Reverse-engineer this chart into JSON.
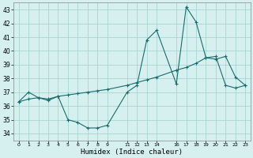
{
  "title": "",
  "xlabel": "Humidex (Indice chaleur)",
  "bg_color": "#d6f0f0",
  "grid_color": "#a8d4d4",
  "line_color": "#1a6b6b",
  "xlim": [
    -0.5,
    23.5
  ],
  "ylim": [
    33.5,
    43.5
  ],
  "yticks": [
    34,
    35,
    36,
    37,
    38,
    39,
    40,
    41,
    42,
    43
  ],
  "xtick_vals": [
    0,
    1,
    2,
    3,
    4,
    5,
    6,
    7,
    8,
    9,
    11,
    12,
    13,
    14,
    16,
    17,
    18,
    19,
    20,
    21,
    22,
    23
  ],
  "xtick_labels": [
    "0",
    "1",
    "2",
    "3",
    "4",
    "5",
    "6",
    "7",
    "8",
    "9",
    "11",
    "12",
    "13",
    "14",
    "16",
    "17",
    "18",
    "19",
    "20",
    "21",
    "22",
    "23"
  ],
  "line1_x": [
    0,
    1,
    2,
    3,
    4,
    5,
    6,
    7,
    8,
    9,
    11,
    12,
    13,
    14,
    16,
    17,
    18,
    19,
    20,
    21,
    22,
    23
  ],
  "line1_y": [
    36.3,
    37.0,
    36.6,
    36.4,
    36.7,
    35.0,
    34.8,
    34.4,
    34.4,
    34.6,
    37.0,
    37.5,
    40.8,
    41.5,
    37.6,
    43.2,
    42.1,
    39.5,
    39.4,
    39.6,
    38.1,
    37.5
  ],
  "line2_x": [
    0,
    1,
    2,
    3,
    4,
    5,
    6,
    7,
    8,
    9,
    11,
    12,
    13,
    14,
    16,
    17,
    18,
    19,
    20,
    21,
    22,
    23
  ],
  "line2_y": [
    36.3,
    36.5,
    36.6,
    36.5,
    36.7,
    36.8,
    36.9,
    37.0,
    37.1,
    37.2,
    37.5,
    37.7,
    37.9,
    38.1,
    38.6,
    38.8,
    39.1,
    39.5,
    39.6,
    37.5,
    37.3,
    37.5
  ]
}
